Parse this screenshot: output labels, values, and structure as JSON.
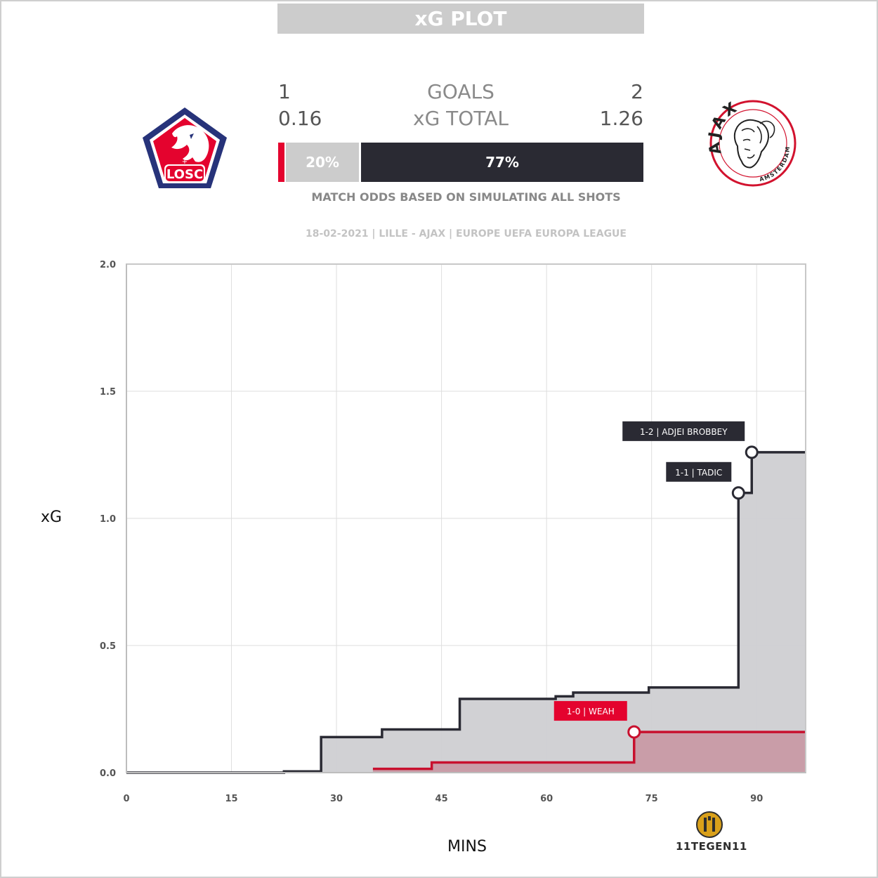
{
  "header": {
    "title": "xG PLOT"
  },
  "scoreboard": {
    "home": {
      "team": "Lille",
      "goals": "1",
      "xg_total": "0.16",
      "logo_text": "LOSC",
      "logo_color": "#e4032e",
      "logo_border": "#27337a"
    },
    "away": {
      "team": "Ajax",
      "goals": "2",
      "xg_total": "1.26",
      "logo_text": "AJAX",
      "logo_sub": "AMSTERDAM",
      "logo_color": "#d2122e"
    },
    "goals_label": "GOALS",
    "xg_label": "xG TOTAL",
    "odds": {
      "home_pct": 0.03,
      "draw_label": "20%",
      "draw_pct": 0.2,
      "away_label": "77%",
      "away_pct": 0.77
    },
    "odds_caption": "MATCH ODDS BASED ON SIMULATING ALL SHOTS",
    "match_info": "18-02-2021 | LILLE - AJAX | EUROPE UEFA EUROPA LEAGUE"
  },
  "chart_data": {
    "type": "line",
    "xlabel": "MINS",
    "ylabel": "xG",
    "xlim": [
      0,
      97
    ],
    "ylim": [
      0,
      2.0
    ],
    "x_ticks": [
      0,
      15,
      30,
      45,
      60,
      75,
      90
    ],
    "x_tick_labels": [
      "0",
      "15",
      "30",
      "45",
      "60",
      "75",
      "90"
    ],
    "y_ticks": [
      0,
      0.5,
      1.0,
      1.5,
      2.0
    ],
    "y_tick_labels": [
      "0.0",
      "0.5",
      "1.0",
      "1.5",
      "2.0"
    ],
    "grid": true,
    "series": [
      {
        "key": "ajax",
        "color": "#2a2a33",
        "fill": "#cfcfd2",
        "x": [
          0,
          22.5,
          27.8,
          36.5,
          47.6,
          61.3,
          63.8,
          74.6,
          87.4,
          89.3,
          97
        ],
        "y": [
          0,
          0.005,
          0.14,
          0.17,
          0.29,
          0.3,
          0.315,
          0.335,
          1.1,
          1.26,
          1.26
        ]
      },
      {
        "key": "lille",
        "color": "#c8102e",
        "fill": "#c89aa5",
        "x": [
          35.2,
          43.6,
          72.5,
          97
        ],
        "y": [
          0.015,
          0.04,
          0.16,
          0.16
        ]
      }
    ],
    "annotations": [
      {
        "label": "1-2 | ADJEI BROBBEY",
        "series": "ajax",
        "x": 89.3,
        "y": 1.26
      },
      {
        "label": "1-1 | TADIC",
        "series": "ajax",
        "x": 87.4,
        "y": 1.1
      },
      {
        "label": "1-0 | WEAH",
        "series": "lille",
        "x": 72.5,
        "y": 0.16
      }
    ]
  },
  "brand": {
    "text": "11TEGEN11",
    "icon": "11-tegen-11-logo"
  }
}
